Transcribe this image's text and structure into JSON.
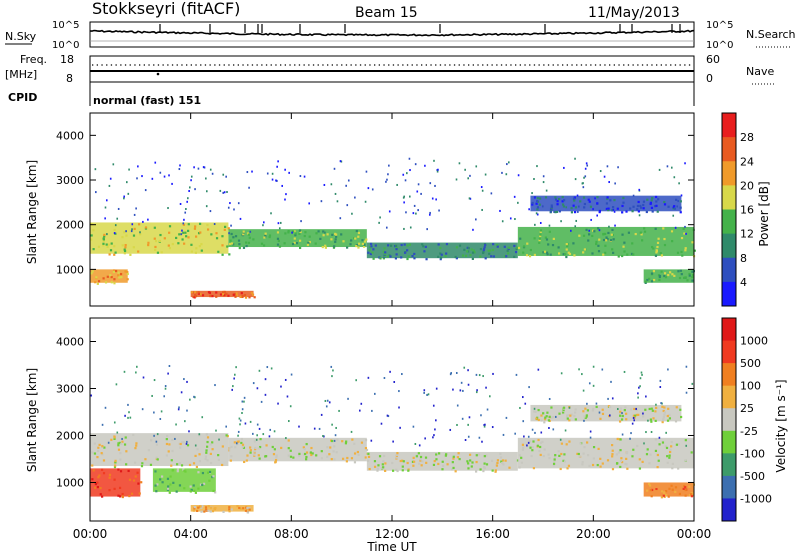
{
  "header": {
    "station": "Stokkseyri (fitACF)",
    "beam": "Beam 15",
    "date": "11/May/2013"
  },
  "top_panels": {
    "nsky_label": "N.Sky",
    "nsky_ticks": [
      "10^5",
      "10^0"
    ],
    "nsearch_label": "N.Search",
    "nsearch_ticks": [
      "10^5",
      "10^0"
    ],
    "freq_label": "Freq.",
    "freq_unit": "[MHz]",
    "freq_ticks": [
      "18",
      "8"
    ],
    "nave_label": "Nave",
    "nave_ticks": [
      "60",
      "0"
    ],
    "cpid_label": "CPID",
    "cpid_value": "normal (fast) 151"
  },
  "chart_data": [
    {
      "type": "heatmap",
      "name": "power",
      "ylabel": "Slant Range [km]",
      "yticks": [
        "4000",
        "3000",
        "2000",
        "1000"
      ],
      "ylim": [
        180,
        4500
      ],
      "xlim_hours": [
        0,
        24
      ],
      "colorbar_label": "Power [dB]",
      "colorbar_ticks": [
        "28",
        "24",
        "20",
        "16",
        "12",
        "8",
        "4"
      ],
      "colors": [
        "#1a1aff",
        "#2e4fbf",
        "#2f8a6a",
        "#44b24a",
        "#d8d84a",
        "#f09a2a",
        "#e85a20",
        "#e81e1e"
      ],
      "bands": [
        {
          "t0": 0.0,
          "t1": 5.5,
          "r0": 1350,
          "r1": 2050,
          "level": 4
        },
        {
          "t0": 5.5,
          "t1": 11.0,
          "r0": 1500,
          "r1": 1900,
          "level": 3
        },
        {
          "t0": 11.0,
          "t1": 17.0,
          "r0": 1250,
          "r1": 1600,
          "level": 2
        },
        {
          "t0": 17.0,
          "t1": 24.0,
          "r0": 1300,
          "r1": 1950,
          "level": 3
        },
        {
          "t0": 17.5,
          "t1": 23.5,
          "r0": 2300,
          "r1": 2650,
          "level": 1
        },
        {
          "t0": 0.0,
          "t1": 1.5,
          "r0": 700,
          "r1": 1000,
          "level": 5
        },
        {
          "t0": 4.0,
          "t1": 6.5,
          "r0": 380,
          "r1": 520,
          "level": 6
        },
        {
          "t0": 22.0,
          "t1": 24.0,
          "r0": 700,
          "r1": 1000,
          "level": 3
        }
      ]
    },
    {
      "type": "heatmap",
      "name": "velocity",
      "ylabel": "Slant Range [km]",
      "yticks": [
        "4000",
        "3000",
        "2000",
        "1000"
      ],
      "ylim": [
        180,
        4500
      ],
      "xlim_hours": [
        0,
        24
      ],
      "xticks": [
        "00:00",
        "04:00",
        "08:00",
        "12:00",
        "16:00",
        "20:00",
        "00:00"
      ],
      "xlabel": "Time UT",
      "colorbar_label": "Velocity [m s⁻¹]",
      "colorbar_ticks": [
        "1000",
        "500",
        "100",
        "25",
        "-25",
        "-100",
        "-500",
        "-1000"
      ],
      "colors": [
        "#2222cc",
        "#3c6fb0",
        "#3d9b6a",
        "#6fcf3a",
        "#c8c8c0",
        "#f0b040",
        "#f07f20",
        "#f03a20",
        "#e01818"
      ],
      "bands": [
        {
          "t0": 0.0,
          "t1": 5.5,
          "r0": 1350,
          "r1": 2050,
          "level": 4
        },
        {
          "t0": 5.5,
          "t1": 11.0,
          "r0": 1450,
          "r1": 1950,
          "level": 4
        },
        {
          "t0": 11.0,
          "t1": 17.0,
          "r0": 1250,
          "r1": 1650,
          "level": 4
        },
        {
          "t0": 17.0,
          "t1": 24.0,
          "r0": 1300,
          "r1": 1950,
          "level": 4
        },
        {
          "t0": 17.5,
          "t1": 23.5,
          "r0": 2300,
          "r1": 2650,
          "level": 4
        },
        {
          "t0": 0.0,
          "t1": 2.0,
          "r0": 700,
          "r1": 1300,
          "level": 7
        },
        {
          "t0": 2.5,
          "t1": 5.0,
          "r0": 800,
          "r1": 1300,
          "level": 3
        },
        {
          "t0": 4.0,
          "t1": 6.5,
          "r0": 380,
          "r1": 520,
          "level": 5
        },
        {
          "t0": 22.0,
          "t1": 24.0,
          "r0": 700,
          "r1": 1000,
          "level": 6
        }
      ]
    }
  ]
}
